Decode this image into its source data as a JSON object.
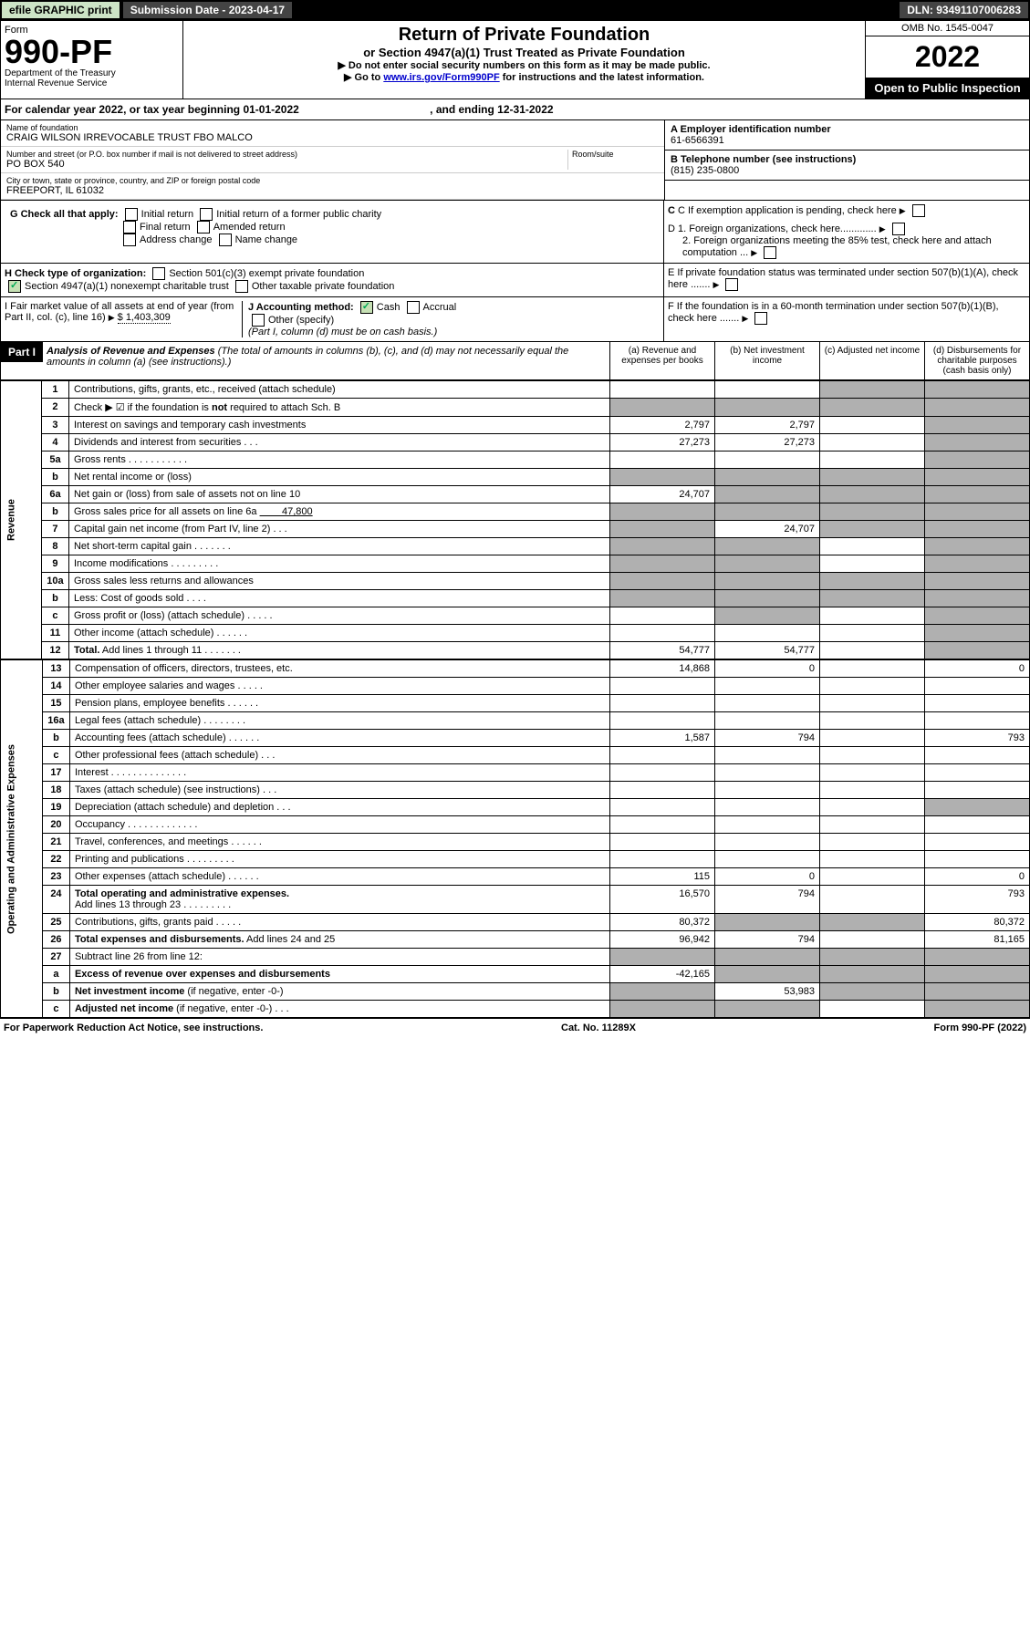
{
  "topbar": {
    "efile": "efile GRAPHIC print",
    "sub_label": "Submission Date - 2023-04-17",
    "dln": "DLN: 93491107006283"
  },
  "header": {
    "form_word": "Form",
    "form_number": "990-PF",
    "dept": "Department of the Treasury\nInternal Revenue Service",
    "title": "Return of Private Foundation",
    "subtitle": "or Section 4947(a)(1) Trust Treated as Private Foundation",
    "notice1": "▶ Do not enter social security numbers on this form as it may be made public.",
    "notice2_pre": "▶ Go to ",
    "notice2_link": "www.irs.gov/Form990PF",
    "notice2_post": " for instructions and the latest information.",
    "omb": "OMB No. 1545-0047",
    "year": "2022",
    "open": "Open to Public Inspection"
  },
  "period": {
    "text": "For calendar year 2022, or tax year beginning 01-01-2022",
    "ending": ", and ending 12-31-2022"
  },
  "foundation": {
    "name_label": "Name of foundation",
    "name": "CRAIG WILSON IRREVOCABLE TRUST FBO MALCO",
    "addr_label": "Number and street (or P.O. box number if mail is not delivered to street address)",
    "addr": "PO BOX 540",
    "room_label": "Room/suite",
    "city_label": "City or town, state or province, country, and ZIP or foreign postal code",
    "city": "FREEPORT, IL  61032",
    "ein_label": "A Employer identification number",
    "ein": "61-6566391",
    "phone_label": "B Telephone number (see instructions)",
    "phone": "(815) 235-0800",
    "c_label": "C If exemption application is pending, check here",
    "d1": "D 1. Foreign organizations, check here.............",
    "d2": "2. Foreign organizations meeting the 85% test, check here and attach computation ...",
    "e": "E  If private foundation status was terminated under section 507(b)(1)(A), check here .......",
    "f": "F  If the foundation is in a 60-month termination under section 507(b)(1)(B), check here .......",
    "g_label": "G Check all that apply:",
    "g_opts": [
      "Initial return",
      "Initial return of a former public charity",
      "Final return",
      "Amended return",
      "Address change",
      "Name change"
    ],
    "h_label": "H Check type of organization:",
    "h_opts": [
      "Section 501(c)(3) exempt private foundation",
      "Section 4947(a)(1) nonexempt charitable trust",
      "Other taxable private foundation"
    ],
    "i_label": "I Fair market value of all assets at end of year (from Part II, col. (c), line 16)",
    "i_value": "$  1,403,309",
    "j_label": "J Accounting method:",
    "j_cash": "Cash",
    "j_accrual": "Accrual",
    "j_other": "Other (specify)",
    "j_note": "(Part I, column (d) must be on cash basis.)"
  },
  "part1": {
    "label": "Part I",
    "title": "Analysis of Revenue and Expenses",
    "note": "(The total of amounts in columns (b), (c), and (d) may not necessarily equal the amounts in column (a) (see instructions).)",
    "col_a": "(a)   Revenue and expenses per books",
    "col_b": "(b)   Net investment income",
    "col_c": "(c)   Adjusted net income",
    "col_d": "(d)   Disbursements for charitable purposes (cash basis only)"
  },
  "sections": {
    "revenue": "Revenue",
    "expenses": "Operating and Administrative Expenses"
  },
  "rows": [
    {
      "n": "1",
      "d": "shade",
      "a": "",
      "b": "",
      "c": "shade"
    },
    {
      "n": "2",
      "d": "shade",
      "a": "shade",
      "b": "shade",
      "c": "shade"
    },
    {
      "n": "3",
      "d": "shade",
      "a": "2,797",
      "b": "2,797",
      "c": ""
    },
    {
      "n": "4",
      "d": "shade",
      "a": "27,273",
      "b": "27,273",
      "c": ""
    },
    {
      "n": "5a",
      "d": "shade",
      "a": "",
      "b": "",
      "c": ""
    },
    {
      "n": "b",
      "d": "shade",
      "a": "shade",
      "b": "shade",
      "c": "shade"
    },
    {
      "n": "6a",
      "d": "shade",
      "a": "24,707",
      "b": "shade",
      "c": "shade"
    },
    {
      "n": "b",
      "d": "shade",
      "a": "shade",
      "b": "shade",
      "c": "shade"
    },
    {
      "n": "7",
      "d": "shade",
      "a": "shade",
      "b": "24,707",
      "c": "shade"
    },
    {
      "n": "8",
      "d": "shade",
      "a": "shade",
      "b": "shade",
      "c": ""
    },
    {
      "n": "9",
      "d": "shade",
      "a": "shade",
      "b": "shade",
      "c": ""
    },
    {
      "n": "10a",
      "d": "shade",
      "a": "shade",
      "b": "shade",
      "c": "shade"
    },
    {
      "n": "b",
      "d": "shade",
      "a": "shade",
      "b": "shade",
      "c": "shade"
    },
    {
      "n": "c",
      "d": "shade",
      "a": "",
      "b": "shade",
      "c": ""
    },
    {
      "n": "11",
      "d": "shade",
      "a": "",
      "b": "",
      "c": ""
    },
    {
      "n": "12",
      "d": "shade",
      "a": "54,777",
      "b": "54,777",
      "c": "",
      "bold": true
    }
  ],
  "exp_rows": [
    {
      "n": "13",
      "d": "0",
      "a": "14,868",
      "b": "0",
      "c": ""
    },
    {
      "n": "14",
      "d": "",
      "a": "",
      "b": "",
      "c": ""
    },
    {
      "n": "15",
      "d": "",
      "a": "",
      "b": "",
      "c": ""
    },
    {
      "n": "16a",
      "d": "",
      "a": "",
      "b": "",
      "c": ""
    },
    {
      "n": "b",
      "d": "793",
      "a": "1,587",
      "b": "794",
      "c": ""
    },
    {
      "n": "c",
      "d": "",
      "a": "",
      "b": "",
      "c": ""
    },
    {
      "n": "17",
      "d": "",
      "a": "",
      "b": "",
      "c": ""
    },
    {
      "n": "18",
      "d": "",
      "a": "",
      "b": "",
      "c": ""
    },
    {
      "n": "19",
      "d": "shade",
      "a": "",
      "b": "",
      "c": ""
    },
    {
      "n": "20",
      "d": "",
      "a": "",
      "b": "",
      "c": ""
    },
    {
      "n": "21",
      "d": "",
      "a": "",
      "b": "",
      "c": ""
    },
    {
      "n": "22",
      "d": "",
      "a": "",
      "b": "",
      "c": ""
    },
    {
      "n": "23",
      "d": "0",
      "a": "115",
      "b": "0",
      "c": ""
    },
    {
      "n": "24",
      "d": "793",
      "a": "16,570",
      "b": "794",
      "c": "",
      "bold": true
    },
    {
      "n": "25",
      "d": "80,372",
      "a": "80,372",
      "b": "shade",
      "c": "shade"
    },
    {
      "n": "26",
      "d": "81,165",
      "a": "96,942",
      "b": "794",
      "c": "",
      "bold": true
    },
    {
      "n": "27",
      "d": "shade",
      "a": "shade",
      "b": "shade",
      "c": "shade"
    },
    {
      "n": "a",
      "d": "shade",
      "a": "-42,165",
      "b": "shade",
      "c": "shade",
      "bold": true
    },
    {
      "n": "b",
      "d": "shade",
      "a": "shade",
      "b": "53,983",
      "c": "shade",
      "bold": true
    },
    {
      "n": "c",
      "d": "shade",
      "a": "shade",
      "b": "shade",
      "c": "",
      "bold": true
    }
  ],
  "footer": {
    "left": "For Paperwork Reduction Act Notice, see instructions.",
    "center": "Cat. No. 11289X",
    "right": "Form 990-PF (2022)"
  }
}
